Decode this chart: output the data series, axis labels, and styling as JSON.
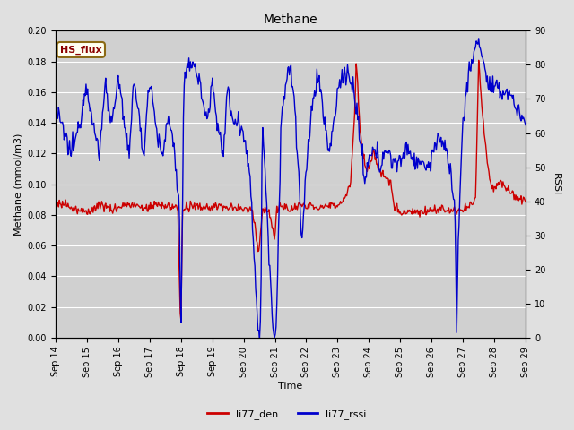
{
  "title": "Methane",
  "xlabel": "Time",
  "ylabel_left": "Methane (mmol/m3)",
  "ylabel_right": "RSSI",
  "legend_label1": "li77_den",
  "legend_label2": "li77_rssi",
  "annotation_text": "HS_flux",
  "fig_bg_color": "#e0e0e0",
  "plot_bg_color": "#d0d0d0",
  "line1_color": "#cc0000",
  "line2_color": "#0000cc",
  "ylim_left": [
    0.0,
    0.2
  ],
  "ylim_right": [
    0,
    90
  ],
  "date_start": 14,
  "date_end": 29,
  "annotation_color": "#8B0000",
  "annotation_bg": "#fffff0",
  "annotation_border": "#8B6914",
  "title_fontsize": 10,
  "axis_fontsize": 8,
  "tick_fontsize": 7
}
